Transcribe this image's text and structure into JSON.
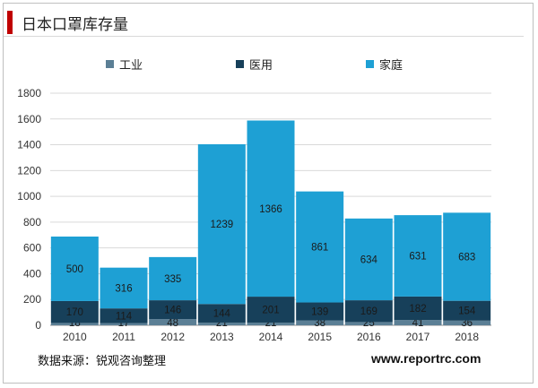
{
  "header": {
    "title": "日本口罩库存量"
  },
  "colors": {
    "accent": "#c00000",
    "industry": "#5b7f95",
    "medical": "#17405a",
    "household": "#1ea0d4",
    "grid": "#d9d9d9"
  },
  "chart_data": {
    "type": "bar",
    "stacked": true,
    "title": "",
    "xlabel": "",
    "ylabel": "",
    "ylim": [
      0,
      1800
    ],
    "yticks": [
      0,
      200,
      400,
      600,
      800,
      1000,
      1200,
      1400,
      1600,
      1800
    ],
    "grid": true,
    "legend_position": "top",
    "categories": [
      "2010",
      "2011",
      "2012",
      "2013",
      "2014",
      "2015",
      "2016",
      "2017",
      "2018"
    ],
    "series": [
      {
        "name": "工业",
        "color": "#5b7f95",
        "values": [
          18,
          17,
          48,
          21,
          21,
          38,
          25,
          41,
          36
        ]
      },
      {
        "name": "医用",
        "color": "#17405a",
        "values": [
          170,
          114,
          146,
          144,
          201,
          139,
          169,
          182,
          154
        ]
      },
      {
        "name": "家庭",
        "color": "#1ea0d4",
        "values": [
          500,
          316,
          335,
          1239,
          1366,
          861,
          634,
          631,
          683
        ]
      }
    ]
  },
  "footer": {
    "source": "数据来源：锐观咨询整理",
    "website": "www.reportrc.com"
  }
}
